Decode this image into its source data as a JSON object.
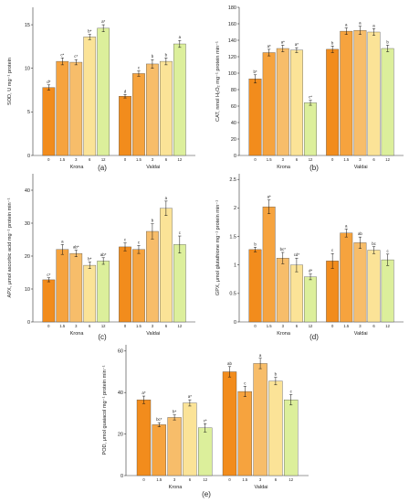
{
  "colors": [
    "#f28c1c",
    "#f6a33e",
    "#f7bd6a",
    "#fbe397",
    "#dcef9b"
  ],
  "chart_data": [
    {
      "type": "bar",
      "panel_label": "(a)",
      "ylabel": "SOD, U mg⁻¹ protein",
      "ylim": [
        0,
        17
      ],
      "yticks": [
        0,
        5,
        10,
        15
      ],
      "groups": [
        "Krona",
        "Valdai"
      ],
      "categories": [
        "0",
        "1.5",
        "3",
        "6",
        "12"
      ],
      "series": [
        {
          "group": "Krona",
          "values": [
            7.8,
            10.8,
            10.7,
            13.6,
            14.6
          ],
          "errors": [
            0.3,
            0.4,
            0.3,
            0.3,
            0.4
          ],
          "letters": [
            "d*",
            "c*",
            "c*",
            "b*",
            "a*"
          ]
        },
        {
          "group": "Valdai",
          "values": [
            6.8,
            9.4,
            10.5,
            10.8,
            12.8
          ],
          "errors": [
            0.2,
            0.3,
            0.5,
            0.4,
            0.4
          ],
          "letters": [
            "d",
            "c",
            "b",
            "b",
            "a"
          ]
        }
      ]
    },
    {
      "type": "bar",
      "panel_label": "(b)",
      "ylabel": "CAT, nmol H₂O₂ mg⁻¹ protein min⁻¹",
      "ylim": [
        0,
        180
      ],
      "yticks": [
        0,
        20,
        40,
        60,
        80,
        100,
        120,
        140,
        160,
        180
      ],
      "groups": [
        "Krona",
        "Valdai"
      ],
      "categories": [
        "0",
        "1.5",
        "3",
        "6",
        "12"
      ],
      "series": [
        {
          "group": "Krona",
          "values": [
            93,
            125,
            130,
            128,
            64
          ],
          "errors": [
            5,
            4,
            4,
            3,
            3
          ],
          "letters": [
            "b*",
            "a*",
            "a*",
            "a*",
            "c*"
          ]
        },
        {
          "group": "Valdai",
          "values": [
            129,
            151,
            152,
            150,
            130
          ],
          "errors": [
            4,
            4,
            5,
            4,
            4
          ],
          "letters": [
            "b",
            "a",
            "a",
            "a",
            "b"
          ]
        }
      ]
    },
    {
      "type": "bar",
      "panel_label": "(c)",
      "ylabel": "APX, μmol ascorbic acid mg⁻¹ protein min⁻¹",
      "ylim": [
        0,
        45
      ],
      "yticks": [
        0,
        10,
        20,
        30,
        40
      ],
      "groups": [
        "Krona",
        "Valdai"
      ],
      "categories": [
        "0",
        "1.5",
        "3",
        "6",
        "12"
      ],
      "series": [
        {
          "group": "Krona",
          "values": [
            12.8,
            22.0,
            20.8,
            17.2,
            18.5
          ],
          "errors": [
            0.6,
            1.5,
            1.0,
            1.0,
            1.0
          ],
          "letters": [
            "c*",
            "a",
            "ab*",
            "b*",
            "ab*"
          ]
        },
        {
          "group": "Valdai",
          "values": [
            22.8,
            22.0,
            27.5,
            34.5,
            23.5
          ],
          "errors": [
            1.2,
            1.2,
            2.3,
            2.2,
            2.6
          ],
          "letters": [
            "c",
            "c",
            "b",
            "a",
            "c"
          ]
        }
      ]
    },
    {
      "type": "bar",
      "panel_label": "(d)",
      "ylabel": "GPX, μmol glutathione mg⁻¹ protein min⁻¹",
      "ylim": [
        0,
        2.6
      ],
      "yticks": [
        0,
        0.5,
        1.0,
        1.5,
        2.0,
        2.5
      ],
      "groups": [
        "Krona",
        "Valdai"
      ],
      "categories": [
        "0",
        "1.5",
        "3",
        "6",
        "12"
      ],
      "series": [
        {
          "group": "Krona",
          "values": [
            1.27,
            2.02,
            1.12,
            1.0,
            0.79
          ],
          "errors": [
            0.04,
            0.12,
            0.1,
            0.12,
            0.05
          ],
          "letters": [
            "b",
            "a*",
            "bc*",
            "cd*",
            "d*"
          ]
        },
        {
          "group": "Valdai",
          "values": [
            1.07,
            1.56,
            1.39,
            1.26,
            1.09
          ],
          "errors": [
            0.13,
            0.07,
            0.1,
            0.06,
            0.1
          ],
          "letters": [
            "c",
            "a",
            "ab",
            "bc",
            "c"
          ]
        }
      ]
    },
    {
      "type": "bar",
      "panel_label": "(e)",
      "ylabel": "POD, μmol guaiacol mg⁻¹ protein min⁻¹",
      "ylim": [
        0,
        63
      ],
      "yticks": [
        0,
        20,
        40,
        60
      ],
      "groups": [
        "Krona",
        "Valdai"
      ],
      "categories": [
        "0",
        "1.5",
        "3",
        "6",
        "12"
      ],
      "series": [
        {
          "group": "Krona",
          "values": [
            36.5,
            24.5,
            28.0,
            35.0,
            23.0
          ],
          "errors": [
            1.8,
            1.0,
            1.2,
            1.5,
            2.0
          ],
          "letters": [
            "a*",
            "bc*",
            "b*",
            "a*",
            "c*"
          ]
        },
        {
          "group": "Valdai",
          "values": [
            50.0,
            40.5,
            54.0,
            45.5,
            36.5
          ],
          "errors": [
            2.5,
            2.5,
            2.5,
            1.8,
            2.5
          ],
          "letters": [
            "ab",
            "c",
            "a",
            "b",
            "c"
          ]
        }
      ]
    }
  ]
}
